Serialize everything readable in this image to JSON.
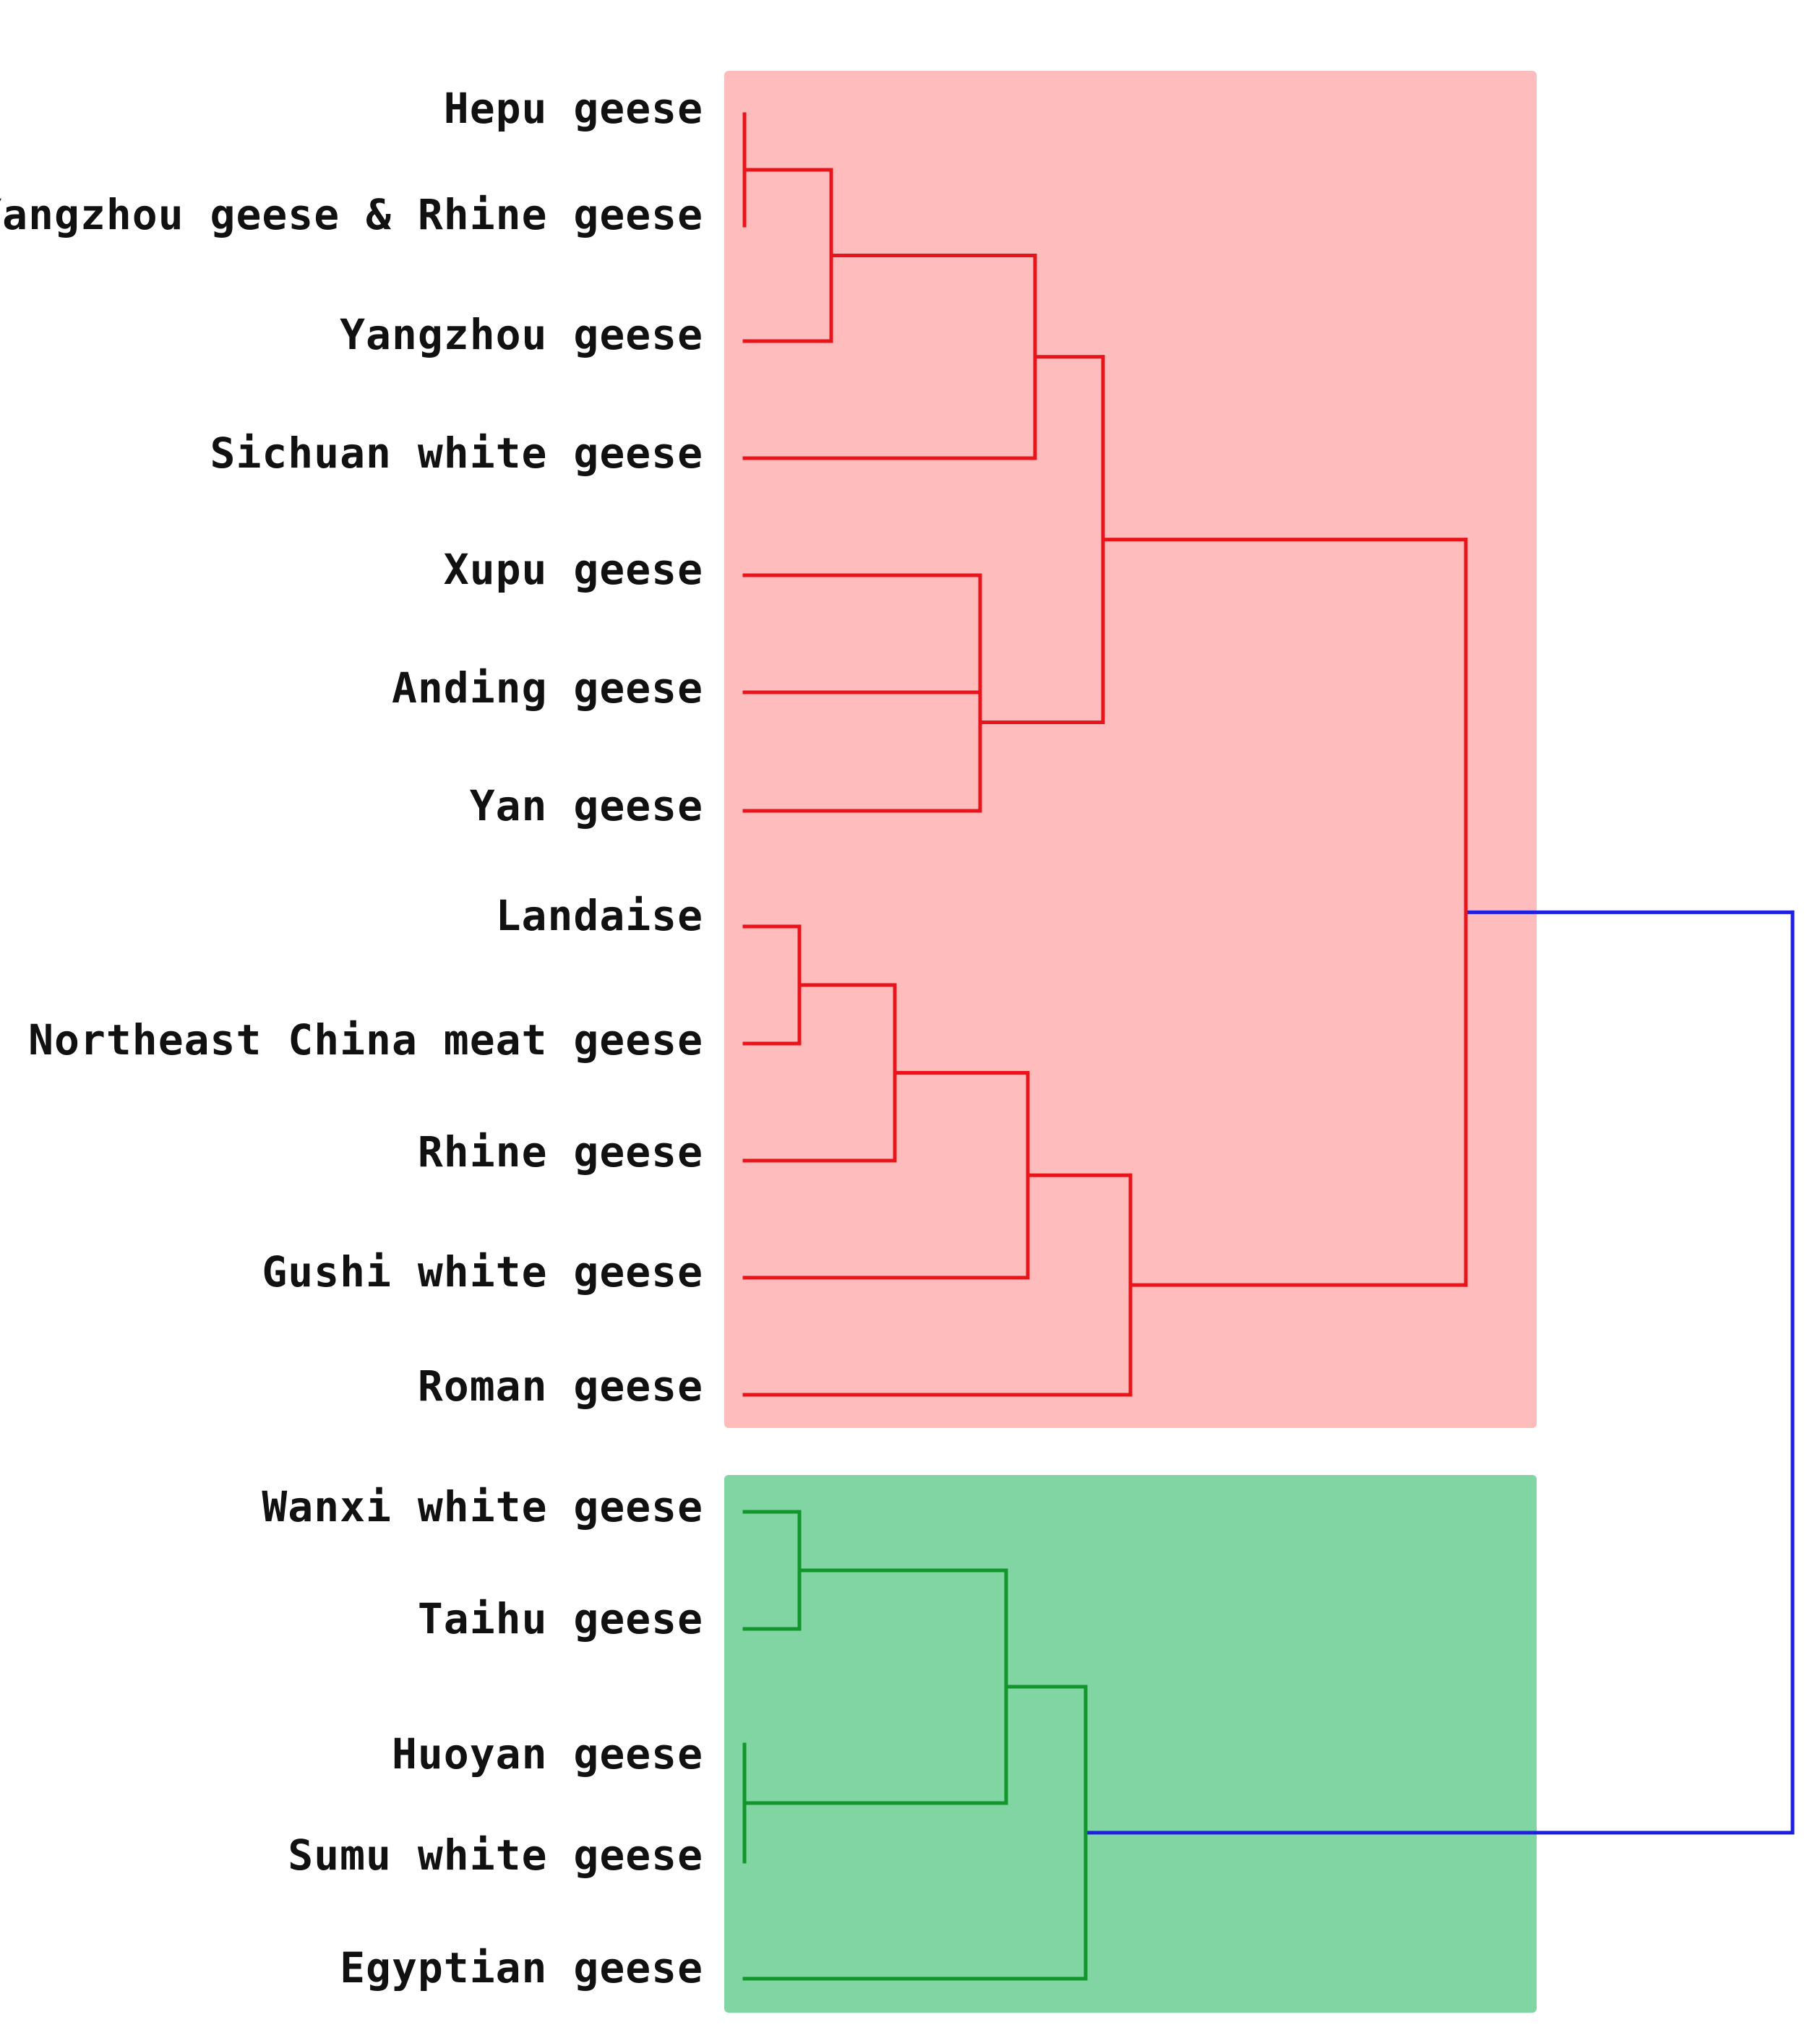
{
  "figure": {
    "type": "dendrogram",
    "orientation": "leaves-left-root-right"
  },
  "clusters": [
    {
      "id": "red",
      "fill_color": "#ffbcbd",
      "line_color": "#e8141c"
    },
    {
      "id": "green",
      "fill_color": "#80d5a3",
      "line_color": "#12962b"
    }
  ],
  "root_link_color": "#1f1fe0",
  "leaves": [
    {
      "label": "Hepu geese",
      "cluster": "red"
    },
    {
      "label": "Yangzhou geese & Rhine geese",
      "cluster": "red"
    },
    {
      "label": "Yangzhou geese",
      "cluster": "red"
    },
    {
      "label": "Sichuan white geese",
      "cluster": "red"
    },
    {
      "label": "Xupu geese",
      "cluster": "red"
    },
    {
      "label": "Anding geese",
      "cluster": "red"
    },
    {
      "label": "Yan geese",
      "cluster": "red"
    },
    {
      "label": "Landaise",
      "cluster": "red"
    },
    {
      "label": "Northeast China meat geese",
      "cluster": "red"
    },
    {
      "label": "Rhine geese",
      "cluster": "red"
    },
    {
      "label": "Gushi white geese",
      "cluster": "red"
    },
    {
      "label": "Roman geese",
      "cluster": "red"
    },
    {
      "label": "Wanxi white geese",
      "cluster": "green"
    },
    {
      "label": "Taihu geese",
      "cluster": "green"
    },
    {
      "label": "Huoyan geese",
      "cluster": "green"
    },
    {
      "label": "Sumu white geese",
      "cluster": "green"
    },
    {
      "label": "Egyptian geese",
      "cluster": "green"
    }
  ],
  "tree": {
    "name": "root",
    "children": [
      {
        "name": "red-clade",
        "children": [
          {
            "name": "r-upper",
            "children": [
              {
                "name": "r-upper-a",
                "children": [
                  {
                    "name": "r-a1",
                    "children": [
                      {
                        "name": "r-a0",
                        "children": [
                          {
                            "leaf": 0
                          },
                          {
                            "leaf": 1
                          }
                        ]
                      },
                      {
                        "leaf": 2
                      }
                    ]
                  },
                  {
                    "leaf": 3
                  }
                ]
              },
              {
                "name": "r-upper-b",
                "children": [
                  {
                    "name": "r-b0",
                    "children": [
                      {
                        "leaf": 4
                      },
                      {
                        "leaf": 5
                      }
                    ]
                  },
                  {
                    "leaf": 6
                  }
                ]
              }
            ]
          },
          {
            "name": "r-lower",
            "children": [
              {
                "name": "r-l2",
                "children": [
                  {
                    "name": "r-l1",
                    "children": [
                      {
                        "name": "r-l0",
                        "children": [
                          {
                            "leaf": 7
                          },
                          {
                            "leaf": 8
                          }
                        ]
                      },
                      {
                        "leaf": 9
                      }
                    ]
                  },
                  {
                    "leaf": 10
                  }
                ]
              },
              {
                "leaf": 11
              }
            ]
          }
        ]
      },
      {
        "name": "green-clade",
        "children": [
          {
            "name": "g1",
            "children": [
              {
                "name": "g0",
                "children": [
                  {
                    "leaf": 12
                  },
                  {
                    "leaf": 13
                  }
                ]
              },
              {
                "name": "g0b",
                "children": [
                  {
                    "leaf": 14
                  },
                  {
                    "leaf": 15
                  }
                ]
              }
            ]
          },
          {
            "leaf": 16
          }
        ]
      }
    ]
  }
}
